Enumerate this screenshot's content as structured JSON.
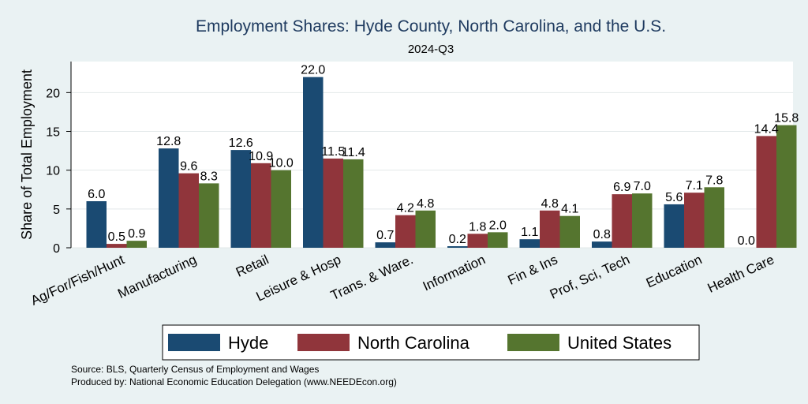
{
  "chart_data": {
    "type": "bar",
    "title": "Employment Shares: Hyde County, North Carolina, and the U.S.",
    "subtitle": "2024-Q3",
    "xlabel": "",
    "ylabel": "Share of Total Employment",
    "ylim": [
      0,
      24
    ],
    "yticks": [
      0,
      5,
      10,
      15,
      20
    ],
    "grid": true,
    "legend_position": "bottom",
    "categories": [
      "Ag/For/Fish/Hunt",
      "Manufacturing",
      "Retail",
      "Leisure & Hosp",
      "Trans. & Ware.",
      "Information",
      "Fin & Ins",
      "Prof, Sci, Tech",
      "Education",
      "Health Care"
    ],
    "series": [
      {
        "name": "Hyde",
        "color": "#1a4a72",
        "values": [
          6.0,
          12.8,
          12.6,
          22.0,
          0.7,
          0.2,
          1.1,
          0.8,
          5.6,
          0.0
        ]
      },
      {
        "name": "North Carolina",
        "color": "#90353b",
        "values": [
          0.5,
          9.6,
          10.9,
          11.5,
          4.2,
          1.8,
          4.8,
          6.9,
          7.1,
          14.4
        ]
      },
      {
        "name": "United States",
        "color": "#55752f",
        "values": [
          0.9,
          8.3,
          10.0,
          11.4,
          4.8,
          2.0,
          4.1,
          7.0,
          7.8,
          15.8
        ]
      }
    ],
    "notes": [
      "Source: BLS, Quarterly Census of Employment and Wages",
      "Produced by: National Economic Education Delegation (www.NEEDEcon.org)"
    ]
  }
}
